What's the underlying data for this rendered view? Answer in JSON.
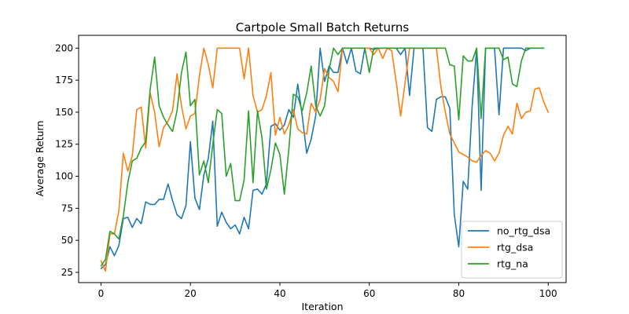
{
  "chart_data": {
    "type": "line",
    "title": "Cartpole Small Batch Returns",
    "xlabel": "Iteration",
    "ylabel": "Average Return",
    "xlim": [
      -5,
      104
    ],
    "ylim": [
      17,
      210
    ],
    "xticks": [
      0,
      20,
      40,
      60,
      80,
      100
    ],
    "yticks": [
      25,
      50,
      75,
      100,
      125,
      150,
      175,
      200
    ],
    "grid": false,
    "legend_position": "lower-right",
    "series": [
      {
        "name": "no_rtg_dsa",
        "color": "#1f77b4",
        "values": [
          28,
          31,
          45,
          38,
          46,
          67,
          68,
          60,
          67,
          63,
          80,
          78,
          78,
          82,
          82,
          94,
          81,
          70,
          67,
          77,
          127,
          83,
          74,
          101,
          114,
          143,
          61,
          72,
          64,
          59,
          62,
          55,
          68,
          59,
          89,
          90,
          86,
          94,
          139,
          141,
          136,
          140,
          152,
          146,
          172,
          147,
          118,
          129,
          147,
          200,
          174,
          186,
          181,
          181,
          200,
          188,
          200,
          182,
          180,
          200,
          200,
          199,
          200,
          200,
          200,
          200,
          200,
          195,
          200,
          163,
          200,
          200,
          200,
          138,
          135,
          160,
          162,
          162,
          153,
          70,
          45,
          96,
          90,
          155,
          200,
          89,
          200,
          200,
          200,
          148,
          200,
          200,
          200,
          200,
          200,
          198,
          200,
          200,
          200,
          200
        ]
      },
      {
        "name": "rtg_dsa",
        "color": "#ff7f0e",
        "values": [
          34,
          26,
          55,
          55,
          73,
          118,
          104,
          116,
          152,
          154,
          122,
          165,
          150,
          123,
          138,
          143,
          151,
          180,
          155,
          137,
          147,
          149,
          178,
          200,
          187,
          169,
          200,
          200,
          200,
          200,
          200,
          200,
          176,
          200,
          163,
          150,
          152,
          163,
          181,
          132,
          146,
          133,
          140,
          152,
          137,
          134,
          133,
          157,
          150,
          160,
          184,
          177,
          174,
          166,
          200,
          200,
          200,
          200,
          200,
          200,
          200,
          195,
          200,
          192,
          200,
          198,
          174,
          147,
          173,
          200,
          200,
          200,
          200,
          200,
          200,
          200,
          170,
          150,
          133,
          126,
          119,
          117,
          115,
          112,
          111,
          116,
          120,
          118,
          112,
          118,
          132,
          139,
          133,
          157,
          145,
          150,
          151,
          168,
          169,
          158,
          150
        ]
      },
      {
        "name": "rtg_na",
        "color": "#2ca02c",
        "values": [
          30,
          35,
          57,
          55,
          51,
          69,
          95,
          112,
          114,
          122,
          127,
          168,
          193,
          155,
          146,
          140,
          135,
          151,
          181,
          197,
          155,
          160,
          101,
          112,
          95,
          125,
          152,
          149,
          100,
          110,
          81,
          81,
          97,
          151,
          95,
          151,
          130,
          90,
          105,
          126,
          117,
          86,
          121,
          164,
          162,
          151,
          165,
          186,
          155,
          147,
          155,
          183,
          200,
          195,
          200,
          200,
          200,
          200,
          200,
          200,
          181,
          200,
          200,
          200,
          200,
          200,
          200,
          200,
          200,
          200,
          200,
          200,
          200,
          200,
          200,
          200,
          200,
          200,
          187,
          186,
          144,
          194,
          190,
          190,
          200,
          145,
          200,
          200,
          200,
          200,
          191,
          193,
          172,
          170,
          190,
          200,
          200,
          200,
          200,
          200
        ]
      }
    ]
  }
}
